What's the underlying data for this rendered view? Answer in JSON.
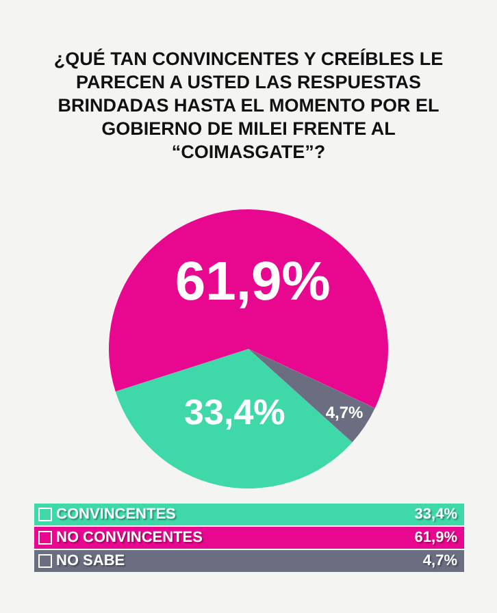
{
  "chart_data": {
    "type": "pie",
    "title": "¿QUÉ TAN CONVINCENTES Y CREÍBLES LE PARECEN A USTED LAS RESPUESTAS BRINDADAS HASTA EL MOMENTO POR EL GOBIERNO DE MILEI FRENTE AL “COIMASGATE”?",
    "categories": [
      "CONVINCENTES",
      "NO CONVINCENTES",
      "NO SABE"
    ],
    "values": [
      33.4,
      61.9,
      4.7
    ],
    "value_labels": [
      "33,4%",
      "61,9%",
      "4,7%"
    ],
    "colors": [
      "#3fd8a8",
      "#e8088f",
      "#6b6e80"
    ],
    "legend": "bottom"
  }
}
